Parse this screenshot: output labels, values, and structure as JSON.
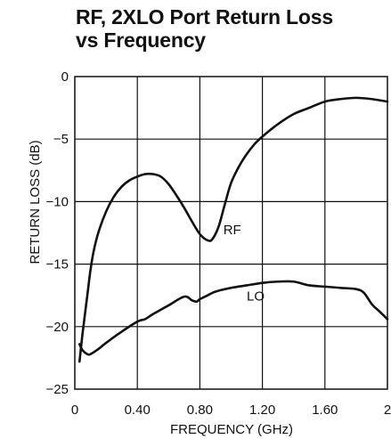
{
  "chart_data": {
    "type": "line",
    "title_lines": [
      "RF, 2XLO Port Return Loss",
      "vs Frequency"
    ],
    "xlabel": "FREQUENCY (GHz)",
    "ylabel": "RETURN LOSS (dB)",
    "xlim": [
      0,
      2
    ],
    "ylim": [
      -25,
      0
    ],
    "x_ticks": [
      0,
      0.4,
      0.8,
      1.2,
      1.6,
      2
    ],
    "x_tick_labels": [
      "0",
      "0.40",
      "0.80",
      "1.20",
      "1.60",
      "2"
    ],
    "y_ticks": [
      0,
      -5,
      -10,
      -15,
      -20,
      -25
    ],
    "y_tick_labels": [
      "0",
      "−5",
      "−10",
      "−15",
      "−20",
      "−25"
    ],
    "grid": true,
    "series": [
      {
        "name": "RF",
        "x": [
          0.03,
          0.05,
          0.08,
          0.1,
          0.12,
          0.15,
          0.2,
          0.25,
          0.3,
          0.35,
          0.4,
          0.45,
          0.5,
          0.55,
          0.6,
          0.65,
          0.7,
          0.75,
          0.8,
          0.85,
          0.88,
          0.92,
          0.96,
          1.0,
          1.05,
          1.1,
          1.15,
          1.2,
          1.3,
          1.4,
          1.5,
          1.6,
          1.7,
          1.8,
          1.9,
          2.0
        ],
        "values": [
          -22.8,
          -20.5,
          -17.5,
          -15.5,
          -14.0,
          -12.5,
          -10.8,
          -9.6,
          -8.8,
          -8.3,
          -8.0,
          -7.8,
          -7.8,
          -8.0,
          -8.6,
          -9.5,
          -10.5,
          -11.6,
          -12.6,
          -13.1,
          -13.0,
          -12.0,
          -10.2,
          -8.5,
          -7.2,
          -6.2,
          -5.4,
          -4.8,
          -3.8,
          -3.0,
          -2.5,
          -2.0,
          -1.8,
          -1.7,
          -1.8,
          -2.0
        ]
      },
      {
        "name": "LO",
        "x": [
          0.03,
          0.05,
          0.08,
          0.1,
          0.15,
          0.2,
          0.3,
          0.4,
          0.45,
          0.5,
          0.6,
          0.7,
          0.75,
          0.78,
          0.8,
          0.85,
          0.9,
          1.0,
          1.1,
          1.2,
          1.3,
          1.4,
          1.5,
          1.6,
          1.7,
          1.8,
          1.85,
          1.9,
          1.95,
          2.0
        ],
        "values": [
          -21.4,
          -21.9,
          -22.2,
          -22.2,
          -21.8,
          -21.3,
          -20.4,
          -19.6,
          -19.4,
          -19.0,
          -18.3,
          -17.6,
          -17.9,
          -18.0,
          -17.8,
          -17.5,
          -17.2,
          -16.9,
          -16.7,
          -16.5,
          -16.4,
          -16.4,
          -16.7,
          -16.8,
          -16.9,
          -17.0,
          -17.3,
          -18.2,
          -18.8,
          -19.4
        ]
      }
    ],
    "annotations": [
      {
        "text": "RF",
        "x": 0.95,
        "y": -12.6
      },
      {
        "text": "LO",
        "x": 1.1,
        "y": -17.9
      }
    ]
  }
}
